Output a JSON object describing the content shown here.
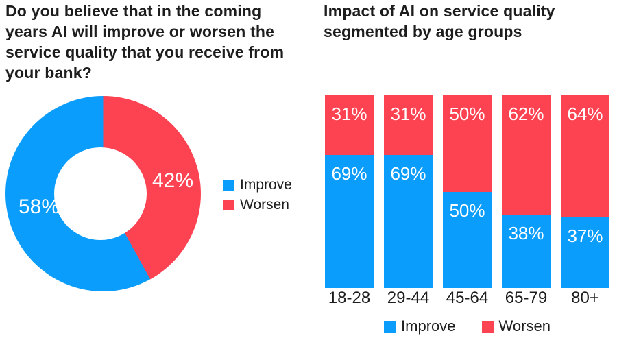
{
  "colors": {
    "improve": "#0B9DFB",
    "worsen": "#FD4352",
    "text": "#1D1D1D",
    "value_label": "#FFFFFF",
    "background": "#FFFFFF"
  },
  "titles": {
    "donut": "Do you believe that in the coming\nyears AI will improve or worsen the\nservice quality that you receive from\nyour bank?",
    "bars": "Impact of AI on service quality\nsegmented by age groups"
  },
  "chart_data": [
    {
      "id": "bank-ai-opinion-donut",
      "type": "pie",
      "subtype": "donut",
      "title": "Do you believe that in the coming years AI will improve or worsen the service quality that you receive from your bank?",
      "start_angle": "top",
      "direction": "clockwise",
      "legend_position": "right-middle",
      "slices": [
        {
          "label": "Improve",
          "value": 58,
          "display": "58%",
          "color_key": "improve"
        },
        {
          "label": "Worsen",
          "value": 42,
          "display": "42%",
          "color_key": "worsen"
        }
      ]
    },
    {
      "id": "ai-impact-by-age-bars",
      "type": "bar",
      "subtype": "stacked-percent",
      "title": "Impact of AI on service quality segmented by age groups",
      "categories": [
        "18-28",
        "29-44",
        "45-64",
        "65-79",
        "80+"
      ],
      "series": [
        {
          "name": "Improve",
          "color_key": "improve",
          "values": [
            69,
            69,
            50,
            38,
            37
          ]
        },
        {
          "name": "Worsen",
          "color_key": "worsen",
          "values": [
            31,
            31,
            50,
            62,
            64
          ]
        }
      ],
      "value_suffix": "%",
      "stack_order_top_to_bottom": [
        "Worsen",
        "Improve"
      ],
      "legend_position": "bottom",
      "axes": "none",
      "grid": false
    }
  ]
}
